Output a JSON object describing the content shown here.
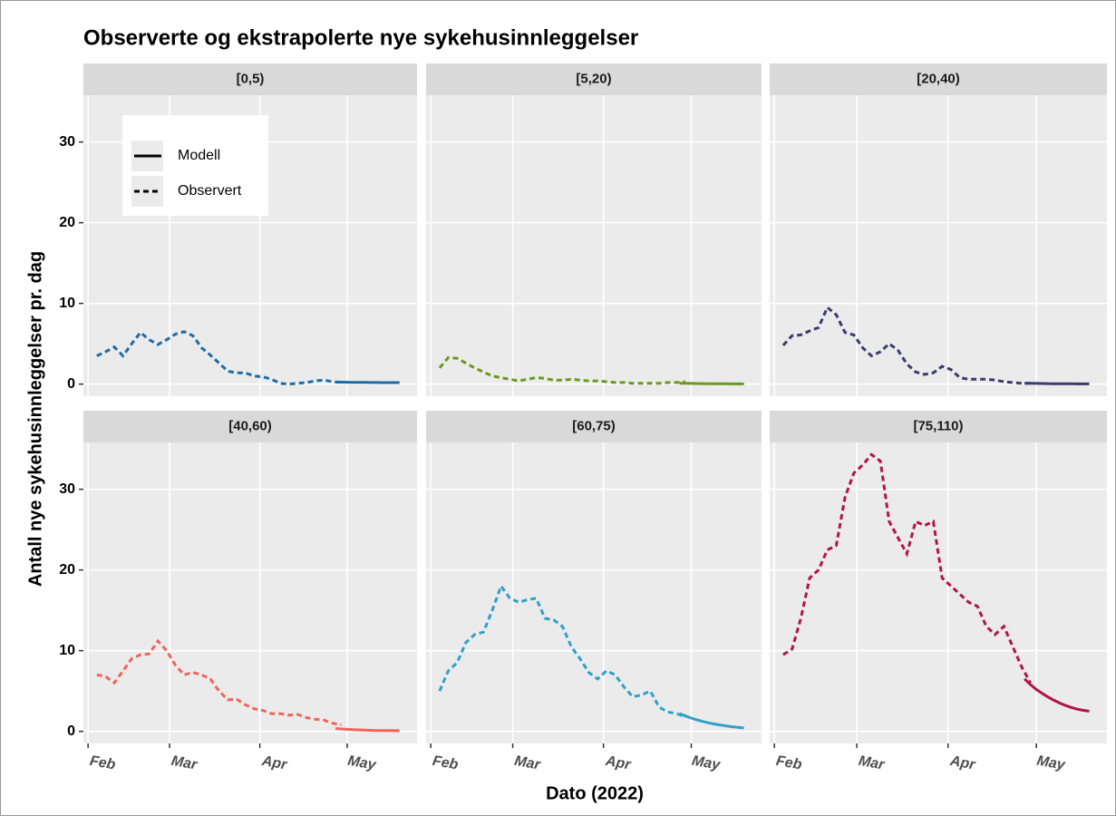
{
  "chart_data": {
    "type": "line",
    "title": "Observerte og ekstrapolerte nye sykehusinnleggelser",
    "xlabel": "Dato (2022)",
    "ylabel": "Antall nye sykehusinnleggelser pr. dag",
    "xlim": [
      -1.6,
      113
    ],
    "ylim": [
      -1.5,
      35.8
    ],
    "xticks": [
      {
        "value": 0,
        "label": "Feb"
      },
      {
        "value": 28,
        "label": "Mar"
      },
      {
        "value": 59,
        "label": "Apr"
      },
      {
        "value": 89,
        "label": "May"
      }
    ],
    "yticks": [
      0,
      10,
      20,
      30
    ],
    "grid": true,
    "legend": [
      {
        "name": "Modell",
        "style": "solid"
      },
      {
        "name": "Observert",
        "style": "dashed"
      }
    ],
    "x_observed": [
      3,
      6,
      9,
      12,
      15,
      18,
      21,
      24,
      27,
      30,
      33,
      36,
      39,
      42,
      45,
      48,
      51,
      54,
      57,
      60,
      63,
      66,
      69,
      72,
      75,
      78,
      81,
      84,
      87
    ],
    "x_model": [
      85,
      87,
      89,
      91,
      93,
      95,
      97,
      99,
      101,
      103,
      105,
      107
    ],
    "panels": [
      {
        "label": "[0,5)",
        "color": "#1b6ca8",
        "observed": [
          3.5,
          4,
          4.6,
          3.5,
          5,
          6.4,
          5.5,
          4.9,
          5.5,
          6.2,
          6.5,
          6.0,
          4.5,
          3.6,
          2.6,
          1.6,
          1.4,
          1.4,
          1.0,
          0.9,
          0.6,
          0.1,
          0.0,
          0.1,
          0.2,
          0.4,
          0.5,
          0.3,
          0.2
        ],
        "model": [
          0.25,
          0.24,
          0.23,
          0.22,
          0.22,
          0.21,
          0.2,
          0.2,
          0.19,
          0.19,
          0.18,
          0.18
        ]
      },
      {
        "label": "[5,20)",
        "color": "#6a9a1f",
        "observed": [
          2,
          3.3,
          3.2,
          2.6,
          2,
          1.5,
          1.0,
          0.8,
          0.6,
          0.4,
          0.6,
          0.8,
          0.7,
          0.5,
          0.5,
          0.6,
          0.5,
          0.4,
          0.4,
          0.3,
          0.2,
          0.2,
          0.1,
          0.1,
          0.1,
          0.1,
          0.2,
          0.2,
          0.3
        ],
        "model": [
          0.1,
          0.09,
          0.08,
          0.07,
          0.06,
          0.05,
          0.05,
          0.04,
          0.04,
          0.03,
          0.03,
          0.03
        ]
      },
      {
        "label": "[20,40)",
        "color": "#3b3b6d",
        "observed": [
          4.8,
          6,
          6.1,
          6.6,
          7,
          9.5,
          8.6,
          6.4,
          6.1,
          4.5,
          3.5,
          4,
          5,
          4.2,
          2.5,
          1.5,
          1.2,
          1.4,
          2.2,
          1.8,
          0.8,
          0.6,
          0.6,
          0.6,
          0.5,
          0.3,
          0.2,
          0.1,
          0.1
        ],
        "model": [
          0.1,
          0.09,
          0.08,
          0.07,
          0.06,
          0.05,
          0.05,
          0.04,
          0.04,
          0.03,
          0.03,
          0.03
        ]
      },
      {
        "label": "[40,60)",
        "color": "#f0645a",
        "observed": [
          7,
          6.8,
          6,
          7.5,
          9,
          9.5,
          9.6,
          11.2,
          10,
          8.2,
          7,
          7.3,
          7,
          6.5,
          5,
          3.9,
          4,
          3.3,
          2.8,
          2.6,
          2.2,
          2.2,
          2,
          2.1,
          1.7,
          1.5,
          1.4,
          1.0,
          0.8
        ],
        "model": [
          0.35,
          0.3,
          0.25,
          0.21,
          0.18,
          0.15,
          0.13,
          0.11,
          0.1,
          0.09,
          0.08,
          0.07
        ]
      },
      {
        "label": "[60,75)",
        "color": "#2fa0c8",
        "observed": [
          5,
          7.5,
          8.5,
          11,
          12,
          12.3,
          15,
          18,
          16.5,
          16,
          16.3,
          16.5,
          14,
          13.8,
          13,
          10.5,
          9,
          7.3,
          6.5,
          7.5,
          7,
          5.5,
          4.3,
          4.5,
          5,
          3,
          2.4,
          2.2,
          1.8
        ],
        "model": [
          2.2,
          1.9,
          1.65,
          1.42,
          1.22,
          1.05,
          0.9,
          0.78,
          0.67,
          0.57,
          0.49,
          0.42
        ]
      },
      {
        "label": "[75,110)",
        "color": "#b3124a",
        "observed": [
          9.5,
          10.2,
          14,
          19,
          20,
          22.5,
          23,
          29,
          32,
          33,
          34.3,
          33.5,
          26,
          24,
          22,
          26,
          25.5,
          26,
          19,
          18,
          17,
          16,
          15.5,
          13,
          12,
          13,
          10.5,
          8,
          6
        ],
        "model": [
          6.5,
          5.8,
          5.2,
          4.7,
          4.25,
          3.85,
          3.5,
          3.2,
          2.95,
          2.75,
          2.6,
          2.5
        ]
      }
    ]
  }
}
